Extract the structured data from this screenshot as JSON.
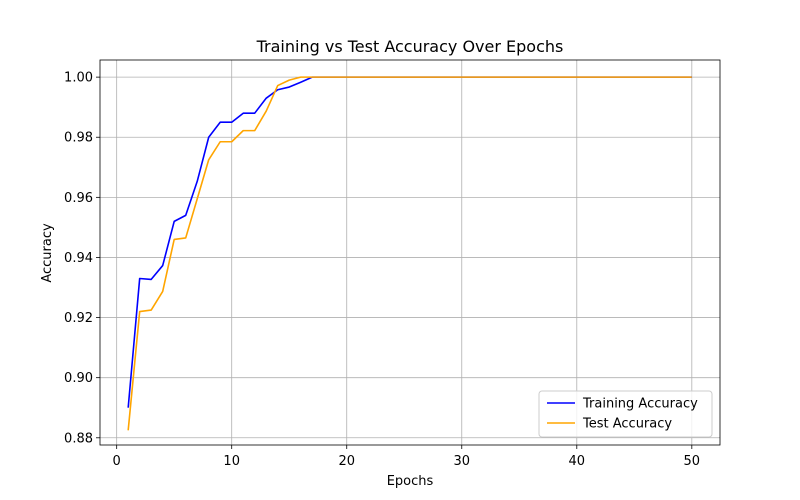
{
  "chart_data": {
    "type": "line",
    "title": "Training vs Test Accuracy Over Epochs",
    "xlabel": "Epochs",
    "ylabel": "Accuracy",
    "xlim": [
      -1.45,
      52.45
    ],
    "ylim": [
      0.8776,
      1.0057
    ],
    "xticks": [
      0,
      10,
      20,
      30,
      40,
      50
    ],
    "yticks": [
      0.88,
      0.9,
      0.92,
      0.94,
      0.96,
      0.98,
      1.0
    ],
    "xtick_labels": [
      "0",
      "10",
      "20",
      "30",
      "40",
      "50"
    ],
    "ytick_labels": [
      "0.88",
      "0.90",
      "0.92",
      "0.94",
      "0.96",
      "0.98",
      "1.00"
    ],
    "grid": true,
    "legend_position": "bottom-right",
    "series": [
      {
        "name": "Training Accuracy",
        "color": "#0000ff",
        "x": [
          1,
          2,
          3,
          4,
          5,
          6,
          7,
          8,
          9,
          10,
          11,
          12,
          13,
          14,
          15,
          16,
          17,
          18,
          19,
          20,
          21,
          22,
          23,
          24,
          25,
          26,
          27,
          28,
          29,
          30,
          31,
          32,
          33,
          34,
          35,
          36,
          37,
          38,
          39,
          40,
          41,
          42,
          43,
          44,
          45,
          46,
          47,
          48,
          49,
          50
        ],
        "values": [
          0.89,
          0.933,
          0.9327,
          0.9373,
          0.952,
          0.954,
          0.9653,
          0.98,
          0.985,
          0.985,
          0.988,
          0.988,
          0.993,
          0.9958,
          0.9967,
          0.9983,
          1.0,
          1.0,
          1.0,
          1.0,
          1.0,
          1.0,
          1.0,
          1.0,
          1.0,
          1.0,
          1.0,
          1.0,
          1.0,
          1.0,
          1.0,
          1.0,
          1.0,
          1.0,
          1.0,
          1.0,
          1.0,
          1.0,
          1.0,
          1.0,
          1.0,
          1.0,
          1.0,
          1.0,
          1.0,
          1.0,
          1.0,
          1.0,
          1.0,
          1.0
        ]
      },
      {
        "name": "Test Accuracy",
        "color": "#ffa500",
        "x": [
          1,
          2,
          3,
          4,
          5,
          6,
          7,
          8,
          9,
          10,
          11,
          12,
          13,
          14,
          15,
          16,
          17,
          18,
          19,
          20,
          21,
          22,
          23,
          24,
          25,
          26,
          27,
          28,
          29,
          30,
          31,
          32,
          33,
          34,
          35,
          36,
          37,
          38,
          39,
          40,
          41,
          42,
          43,
          44,
          45,
          46,
          47,
          48,
          49,
          50
        ],
        "values": [
          0.8825,
          0.922,
          0.9225,
          0.9287,
          0.946,
          0.9465,
          0.9595,
          0.9725,
          0.9785,
          0.9785,
          0.9822,
          0.9822,
          0.9887,
          0.9972,
          0.999,
          1.0,
          1.0,
          1.0,
          1.0,
          1.0,
          1.0,
          1.0,
          1.0,
          1.0,
          1.0,
          1.0,
          1.0,
          1.0,
          1.0,
          1.0,
          1.0,
          1.0,
          1.0,
          1.0,
          1.0,
          1.0,
          1.0,
          1.0,
          1.0,
          1.0,
          1.0,
          1.0,
          1.0,
          1.0,
          1.0,
          1.0,
          1.0,
          1.0,
          1.0,
          1.0
        ]
      }
    ]
  }
}
